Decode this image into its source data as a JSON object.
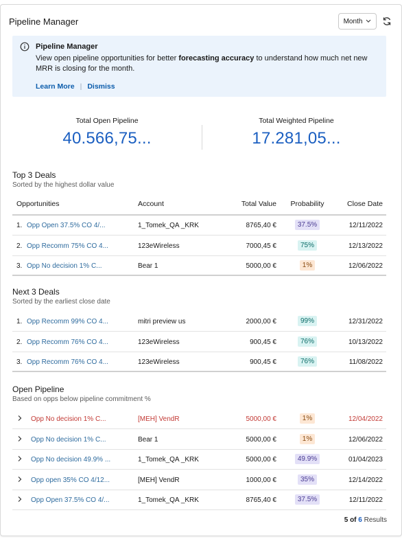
{
  "header": {
    "title": "Pipeline Manager",
    "period": "Month"
  },
  "banner": {
    "title": "Pipeline Manager",
    "text_before": "View open pipeline opportunities for better ",
    "text_bold": "forecasting accuracy",
    "text_after": " to understand how much net new MRR is closing for the month.",
    "learn_more": "Learn More",
    "separator": "|",
    "dismiss": "Dismiss"
  },
  "metrics": {
    "open_label": "Total Open Pipeline",
    "open_value": "40.566,75...",
    "weighted_label": "Total Weighted Pipeline",
    "weighted_value": "17.281,05..."
  },
  "top_deals": {
    "title": "Top 3 Deals",
    "subtitle": "Sorted by the highest dollar value",
    "columns": [
      "Opportunities",
      "Account",
      "Total Value",
      "Probability",
      "Close Date"
    ],
    "rows": [
      {
        "idx": "1.",
        "opp": "Opp Open 37.5% CO 4/...",
        "account": "1_Tomek_QA _KRK",
        "value": "8765,40 €",
        "prob": "37.5%",
        "date": "12/11/2022",
        "tone": "purple"
      },
      {
        "idx": "2.",
        "opp": "Opp Recomm 75% CO 4...",
        "account": "123eWireless",
        "value": "7000,45 €",
        "prob": "75%",
        "date": "12/13/2022",
        "tone": "teal"
      },
      {
        "idx": "3.",
        "opp": "Opp No decision 1% C...",
        "account": "Bear 1",
        "value": "5000,00 €",
        "prob": "1%",
        "date": "12/06/2022",
        "tone": "orange"
      }
    ]
  },
  "next_deals": {
    "title": "Next 3 Deals",
    "subtitle": "Sorted by the earliest close date",
    "rows": [
      {
        "idx": "1.",
        "opp": "Opp Recomm 99% CO 4...",
        "account": "mitri preview us",
        "value": "2000,00 €",
        "prob": "99%",
        "date": "12/31/2022",
        "tone": "teal"
      },
      {
        "idx": "2.",
        "opp": "Opp Recomm 76% CO 4...",
        "account": "123eWireless",
        "value": "900,45 €",
        "prob": "76%",
        "date": "10/13/2022",
        "tone": "teal"
      },
      {
        "idx": "3.",
        "opp": "Opp Recomm 76% CO 4...",
        "account": "123eWireless",
        "value": "900,45 €",
        "prob": "76%",
        "date": "11/08/2022",
        "tone": "teal"
      }
    ]
  },
  "open_pipeline": {
    "title": "Open Pipeline",
    "subtitle": "Based on opps below pipeline commitment %",
    "rows": [
      {
        "opp": "Opp No decision 1% C...",
        "account": "[MEH] VendR",
        "value": "5000,00 €",
        "prob": "1%",
        "date": "12/04/2022",
        "tone": "orange",
        "overdue": true
      },
      {
        "opp": "Opp No decision 1% C...",
        "account": "Bear 1",
        "value": "5000,00 €",
        "prob": "1%",
        "date": "12/06/2022",
        "tone": "orange",
        "overdue": false
      },
      {
        "opp": "Opp No decision 49.9% ...",
        "account": "1_Tomek_QA _KRK",
        "value": "5000,00 €",
        "prob": "49.9%",
        "date": "01/04/2023",
        "tone": "purple",
        "overdue": false
      },
      {
        "opp": "Opp open 35% CO 4/12...",
        "account": "[MEH] VendR",
        "value": "1000,00 €",
        "prob": "35%",
        "date": "12/14/2022",
        "tone": "purple",
        "overdue": false
      },
      {
        "opp": "Opp Open 37.5% CO 4/...",
        "account": "1_Tomek_QA _KRK",
        "value": "8765,40 €",
        "prob": "37.5%",
        "date": "12/11/2022",
        "tone": "purple",
        "overdue": false
      }
    ],
    "results_shown": "5",
    "results_of": "of",
    "results_total": "6",
    "results_label": "Results"
  }
}
